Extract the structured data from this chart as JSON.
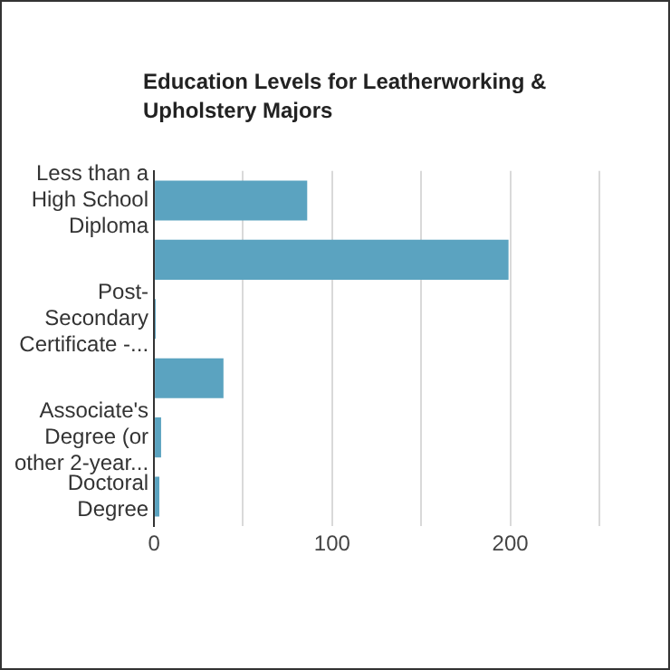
{
  "chart_data": {
    "type": "bar",
    "orientation": "horizontal",
    "title": "Education Levels for Leatherworking & Upholstery Majors",
    "categories": [
      "Less than a High School Diploma",
      null,
      "Post-Secondary Certificate -...",
      null,
      "Associate's Degree (or other 2-year...",
      "Doctoral Degree"
    ],
    "values": [
      86,
      199,
      1,
      39,
      4,
      3
    ],
    "color": "#5ba3c0",
    "xlim": [
      0,
      250
    ],
    "xticks": [
      0,
      {
        "value": 50,
        "label": null
      },
      100,
      {
        "value": 150,
        "label": null
      },
      200,
      {
        "value": 250,
        "label": null
      }
    ],
    "grid": "x",
    "legend": false
  }
}
